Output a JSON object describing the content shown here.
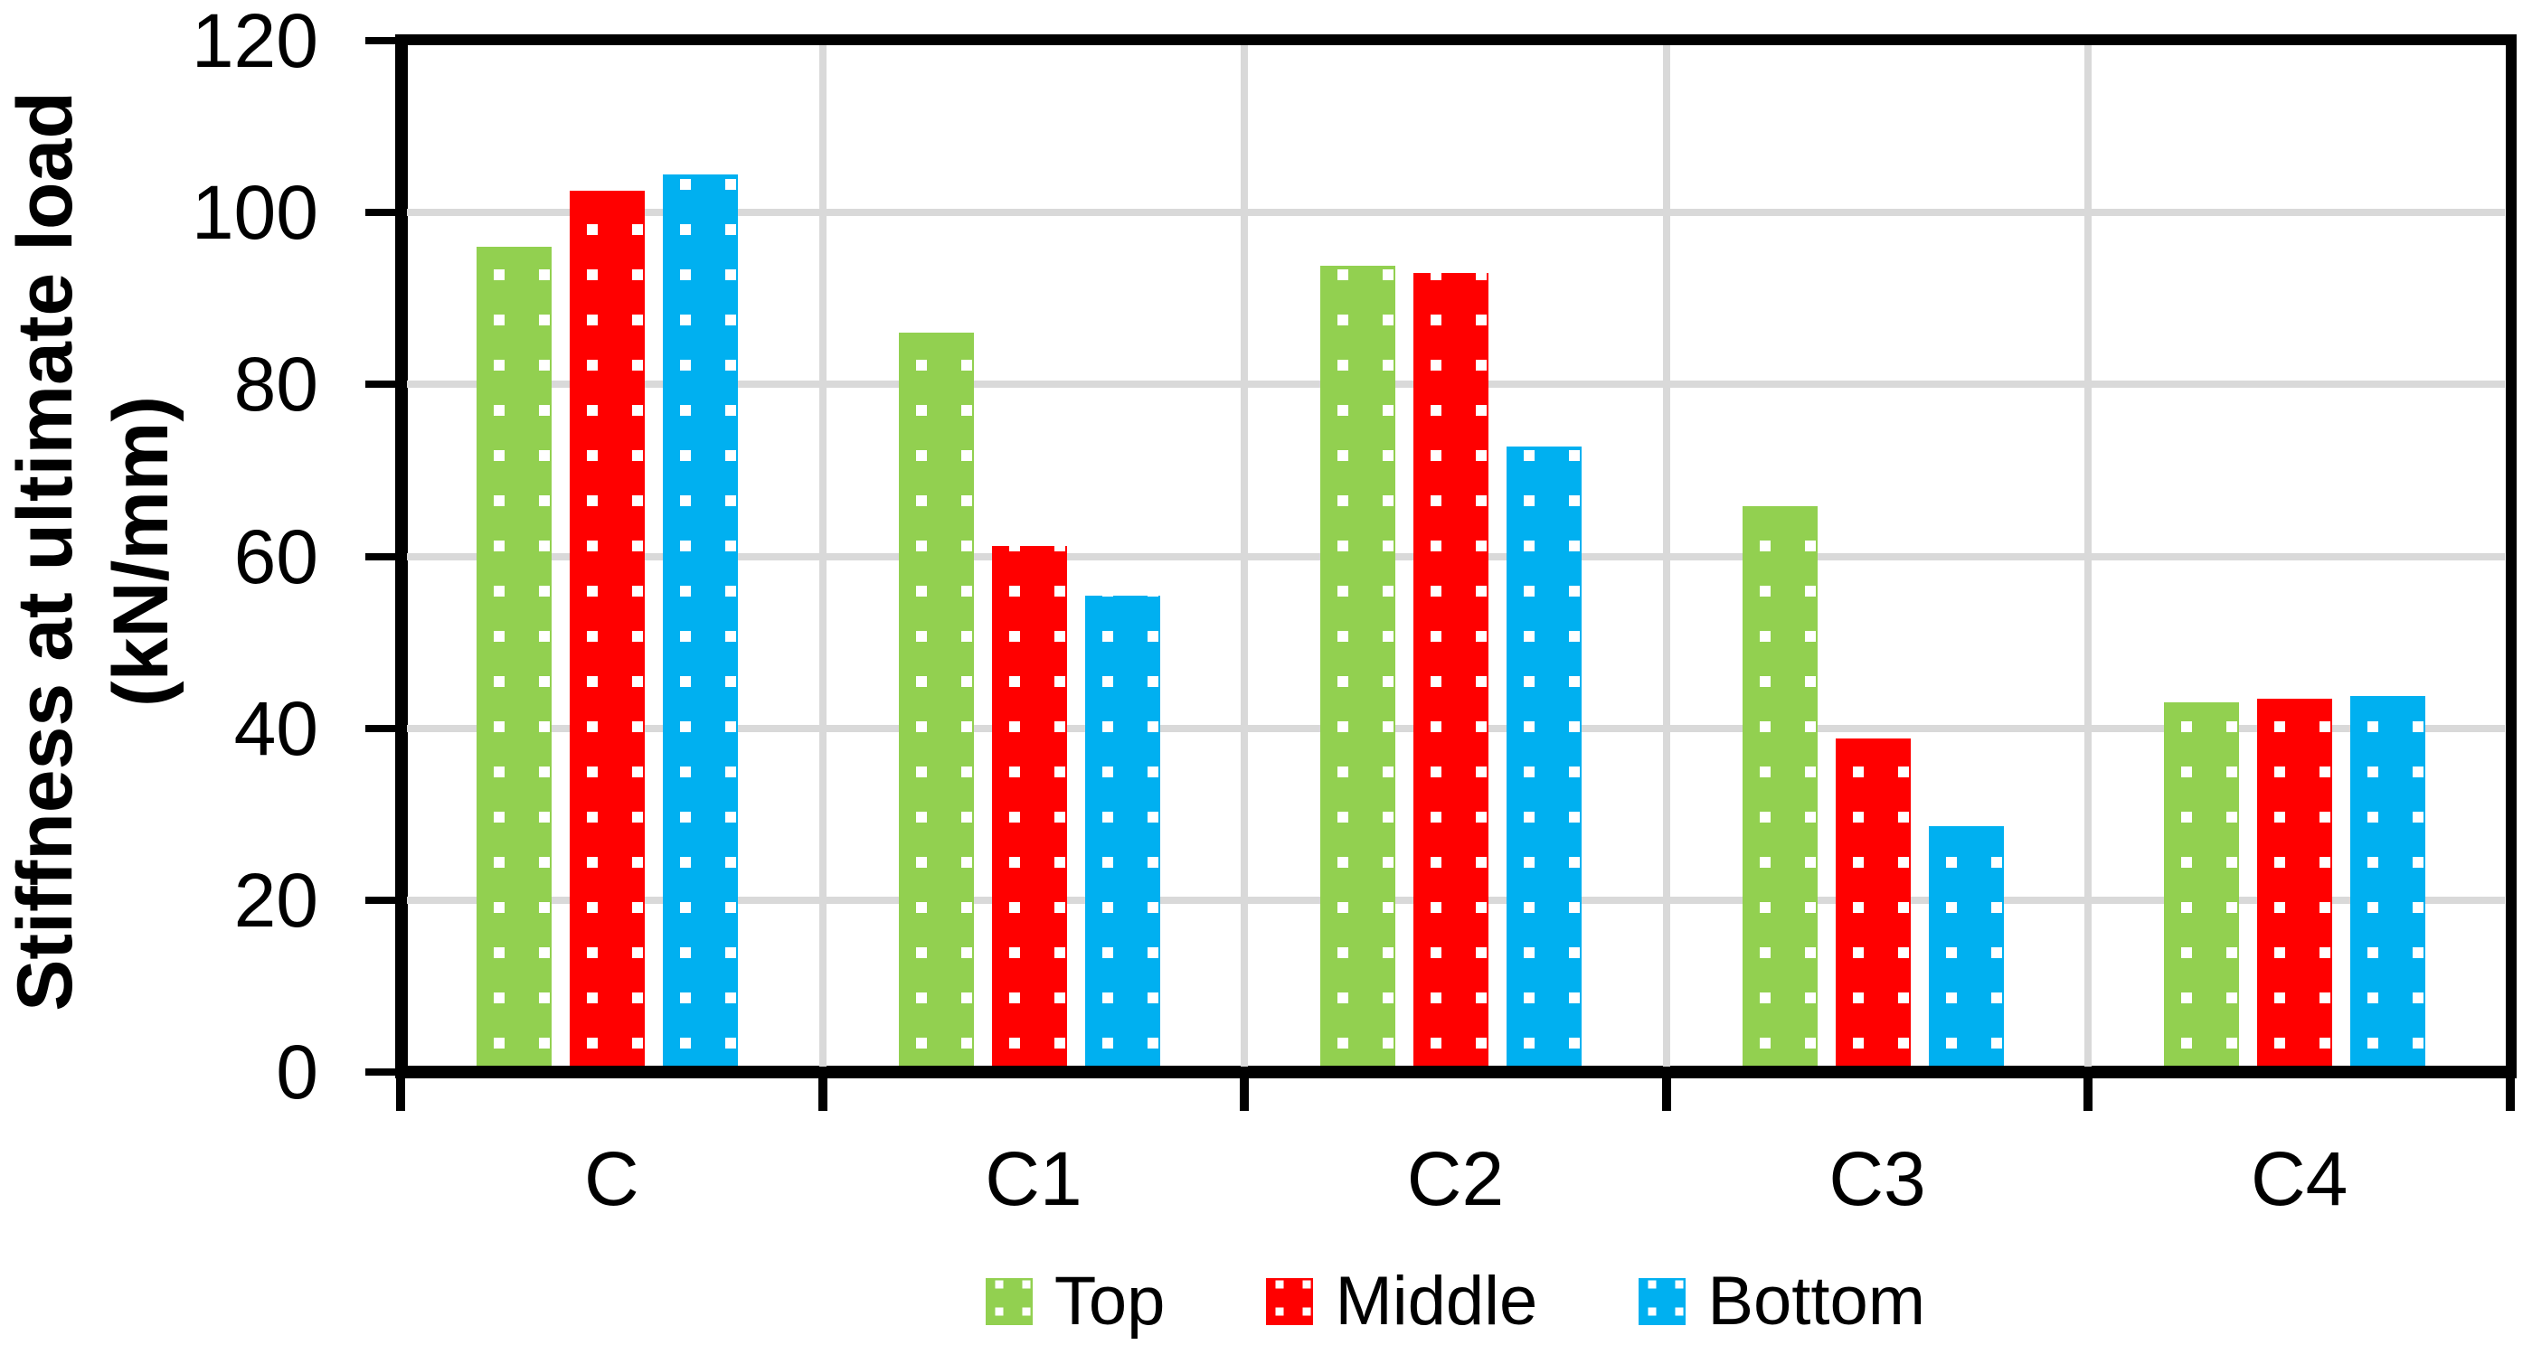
{
  "chart_data": {
    "type": "bar",
    "title": "",
    "categories": [
      "C",
      "C1",
      "C2",
      "C3",
      "C4"
    ],
    "series": [
      {
        "name": "Top",
        "color": "#92D050",
        "values": [
          96.0,
          86.0,
          93.8,
          65.8,
          43.0
        ]
      },
      {
        "name": "Middle",
        "color": "#FF0000",
        "values": [
          102.5,
          61.2,
          93.0,
          38.8,
          43.4
        ]
      },
      {
        "name": "Bottom",
        "color": "#00B0F0",
        "values": [
          104.4,
          55.4,
          72.8,
          28.6,
          43.7
        ]
      }
    ],
    "ylabel": "Stiffness at ultimate load (kN/mm)",
    "ylabel_lines": [
      "Stiffness at ultimate load",
      "(kN/mm)"
    ],
    "xlabel": "",
    "ylim": [
      0,
      120
    ],
    "yticks": [
      0,
      20,
      40,
      60,
      80,
      100,
      120
    ],
    "grid": true,
    "legend_position": "bottom",
    "bar_fill_pattern": "white-square-dots",
    "colors": {
      "gridline": "#D9D9D9",
      "axis": "#000000",
      "background": "#FFFFFF"
    }
  }
}
